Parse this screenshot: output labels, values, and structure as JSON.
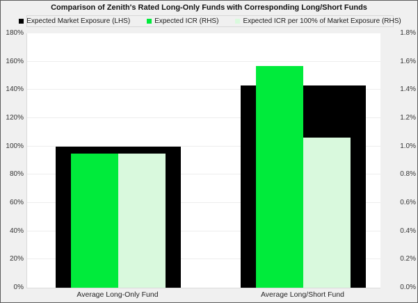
{
  "window": {
    "background": "#F0F0F0",
    "border_color": "#5A5A5A"
  },
  "chart_data": {
    "type": "bar",
    "title": "Comparison of Zenith's Rated Long-Only Funds with Corresponding Long/Short Funds",
    "categories": [
      "Average Long-Only Fund",
      "Average Long/Short Fund"
    ],
    "series": [
      {
        "name": "Expected Market Exposure (LHS)",
        "axis": "left",
        "color": "#000000",
        "values": [
          100,
          143
        ]
      },
      {
        "name": "Expected ICR (RHS)",
        "axis": "right",
        "color": "#00EB3B",
        "values": [
          0.95,
          1.57
        ]
      },
      {
        "name": "Expected ICR per 100% of Market Exposure (RHS)",
        "axis": "right",
        "color": "#D9F9DD",
        "values": [
          0.95,
          1.06
        ]
      }
    ],
    "axes": {
      "left": {
        "min": 0,
        "max": 180,
        "step": 20,
        "unit": "%",
        "ticks": [
          "0%",
          "20%",
          "40%",
          "60%",
          "80%",
          "100%",
          "120%",
          "140%",
          "160%",
          "180%"
        ]
      },
      "right": {
        "min": 0,
        "max": 1.8,
        "step": 0.2,
        "unit": "%",
        "ticks": [
          "0.0%",
          "0.2%",
          "0.4%",
          "0.6%",
          "0.8%",
          "1.0%",
          "1.2%",
          "1.4%",
          "1.6%",
          "1.8%"
        ]
      }
    },
    "grid": true,
    "legend_position": "top",
    "plot_background": "#FFFFFF",
    "gridline_color": "#EDEDED"
  },
  "legend": {
    "items": [
      {
        "label": "Expected Market Exposure (LHS)",
        "color": "#000000"
      },
      {
        "label": "Expected ICR (RHS)",
        "color": "#00EB3B"
      },
      {
        "label": "Expected ICR per 100% of Market Exposure (RHS)",
        "color": "#D9F9DD"
      }
    ]
  }
}
